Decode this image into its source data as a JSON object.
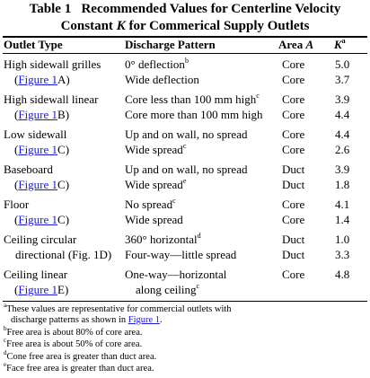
{
  "caption": {
    "label": "Table 1",
    "line1": "Recommended Values for Centerline Velocity",
    "line2_pre": "Constant ",
    "line2_k": "K",
    "line2_post": " for Commerical Supply Outlets"
  },
  "headers": {
    "outlet": "Outlet Type",
    "pattern": "Discharge Pattern",
    "area_pre": "Area ",
    "area_a": "A",
    "k": "K",
    "k_sup": "a"
  },
  "rows": [
    {
      "outlet_1": "High sidewall grilles",
      "outlet_2_pre": "(",
      "outlet_2_link": "Figure 1",
      "outlet_2_post": "A)",
      "pattern_1": "0° deflection",
      "sup_1": "b",
      "pattern_2": "Wide deflection",
      "sup_2": "",
      "area_1": "Core",
      "area_2": "Core",
      "k_1": "5.0",
      "k_2": "3.7"
    },
    {
      "outlet_1": "High sidewall linear",
      "outlet_2_pre": "(",
      "outlet_2_link": "Figure 1",
      "outlet_2_post": "B)",
      "pattern_1": "Core less than 100 mm high",
      "sup_1": "c",
      "pattern_2": "Core more than 100 mm high",
      "sup_2": "",
      "area_1": "Core",
      "area_2": "Core",
      "k_1": "3.9",
      "k_2": "4.4"
    },
    {
      "outlet_1": "Low sidewall",
      "outlet_2_pre": "(",
      "outlet_2_link": "Figure 1",
      "outlet_2_post": "C)",
      "pattern_1": "Up and on wall, no spread",
      "sup_1": "",
      "pattern_2": "Wide spread",
      "sup_2": "c",
      "area_1": "Core",
      "area_2": "Core",
      "k_1": "4.4",
      "k_2": "2.6"
    },
    {
      "outlet_1": "Baseboard",
      "outlet_2_pre": "(",
      "outlet_2_link": "Figure 1",
      "outlet_2_post": "C)",
      "pattern_1": "Up and on wall, no spread",
      "sup_1": "",
      "pattern_2": "Wide spread",
      "sup_2": "e",
      "area_1": "Duct",
      "area_2": "Duct",
      "k_1": "3.9",
      "k_2": "1.8"
    },
    {
      "outlet_1": "Floor",
      "outlet_2_pre": "(",
      "outlet_2_link": "Figure 1",
      "outlet_2_post": "C)",
      "pattern_1": "No spread",
      "sup_1": "c",
      "pattern_2": "Wide spread",
      "sup_2": "",
      "area_1": "Core",
      "area_2": "Core",
      "k_1": "4.1",
      "k_2": "1.4"
    },
    {
      "outlet_1": "Ceiling circular",
      "outlet_2_pre": "directional (Fig. 1D)",
      "outlet_2_link": "",
      "outlet_2_post": "",
      "pattern_1": "360° horizontal",
      "sup_1": "d",
      "pattern_2": "Four-way—little spread",
      "sup_2": "",
      "area_1": "Duct",
      "area_2": "Duct",
      "k_1": "1.0",
      "k_2": "3.3"
    },
    {
      "outlet_1": "Ceiling linear",
      "outlet_2_pre": "(",
      "outlet_2_link": "Figure 1",
      "outlet_2_post": "E)",
      "pattern_1": "One-way—horizontal",
      "sup_1": "",
      "pattern_2": "along ceiling",
      "sup_2": "c",
      "area_1": "Core",
      "area_2": "",
      "k_1": "4.8",
      "k_2": ""
    }
  ],
  "notes": [
    {
      "mark": "a",
      "text": "These values are representative for commercial outlets with"
    },
    {
      "mark": "",
      "text": "discharge patterns as shown in ",
      "link": "Figure 1",
      "tail": "."
    },
    {
      "mark": "b",
      "text": "Free area is about 80% of core area."
    },
    {
      "mark": "c",
      "text": "Free area is about 50% of core area."
    },
    {
      "mark": "d",
      "text": "Cone free area is greater than duct area."
    },
    {
      "mark": "e",
      "text": "Face free area is greater than duct area."
    }
  ]
}
